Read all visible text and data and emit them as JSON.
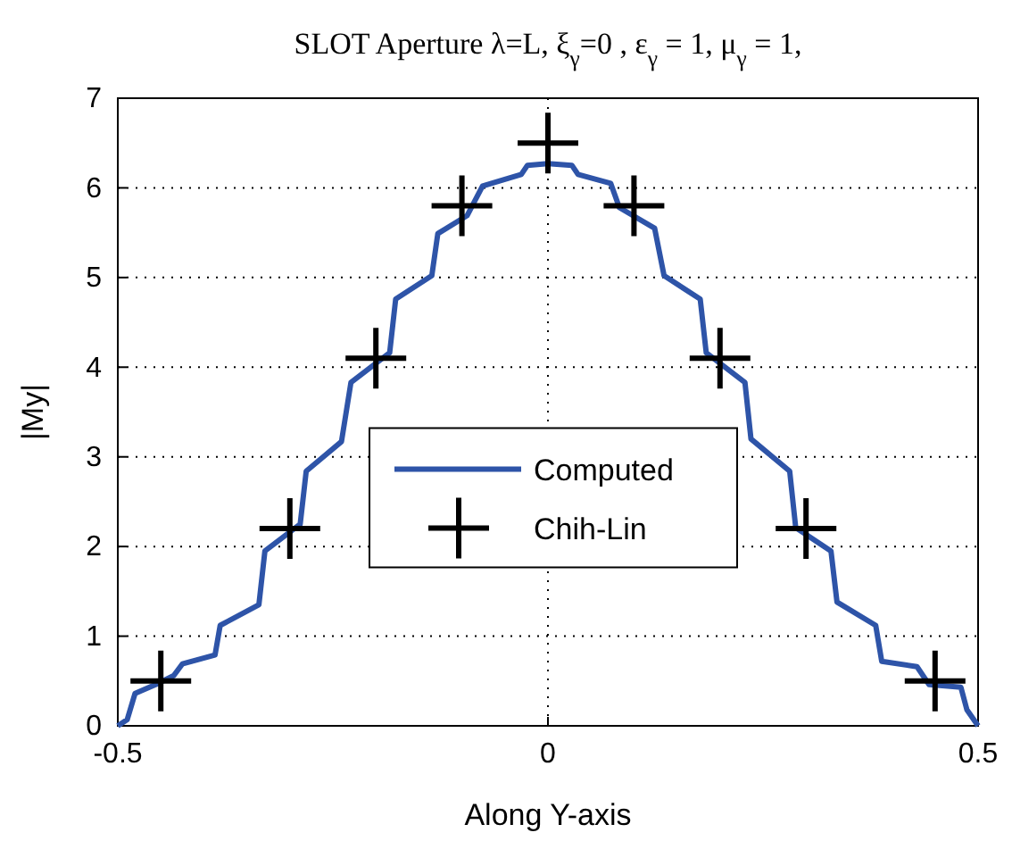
{
  "chart_data": {
    "type": "line",
    "title": "SLOT Aperture λ=L, ξ$_{γ}$=0 , ε$_{γ}$ = 1, μ$_{γ}$ = 1,",
    "xlabel": "Along Y-axis",
    "ylabel": "|My|",
    "xlim": [
      -0.5,
      0.5
    ],
    "xticks": [
      -0.5,
      0,
      0.5
    ],
    "ylim": [
      0,
      7
    ],
    "yticks": [
      0,
      1,
      2,
      3,
      4,
      5,
      6,
      7
    ],
    "grid": true,
    "legend": "center",
    "line_style": "solid",
    "series": [
      {
        "name": "Computed",
        "color": "#2e54a8",
        "marker": "none",
        "x": [
          -0.5,
          -0.489,
          -0.48,
          -0.456,
          -0.435,
          -0.425,
          -0.387,
          -0.381,
          -0.336,
          -0.329,
          -0.288,
          -0.281,
          -0.24,
          -0.229,
          -0.184,
          -0.177,
          -0.135,
          -0.128,
          -0.094,
          -0.076,
          -0.031,
          -0.024,
          0,
          0.028,
          0.035,
          0.073,
          0.083,
          0.124,
          0.135,
          0.177,
          0.184,
          0.229,
          0.236,
          0.281,
          0.288,
          0.329,
          0.336,
          0.381,
          0.388,
          0.429,
          0.443,
          0.48,
          0.487,
          0.5
        ],
        "values": [
          0,
          0.07,
          0.36,
          0.46,
          0.56,
          0.69,
          0.79,
          1.12,
          1.35,
          1.95,
          2.25,
          2.84,
          3.17,
          3.83,
          4.16,
          4.76,
          5.02,
          5.49,
          5.69,
          6.02,
          6.15,
          6.25,
          6.27,
          6.25,
          6.15,
          6.05,
          5.78,
          5.55,
          5.02,
          4.76,
          4.16,
          3.83,
          3.2,
          2.84,
          2.21,
          1.95,
          1.38,
          1.12,
          0.72,
          0.66,
          0.46,
          0.43,
          0.18,
          0
        ]
      },
      {
        "name": "Chih-Lin",
        "type": "scatter",
        "color": "#000000",
        "marker": "cross",
        "x": [
          -0.45,
          -0.3,
          -0.2,
          -0.1,
          0,
          0.1,
          0.2,
          0.3,
          0.45
        ],
        "values": [
          0.5,
          2.2,
          4.1,
          5.8,
          6.5,
          5.8,
          4.1,
          2.2,
          0.5
        ]
      }
    ]
  }
}
